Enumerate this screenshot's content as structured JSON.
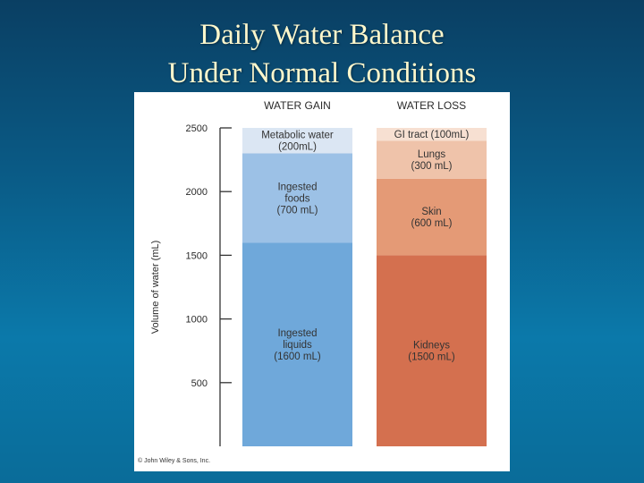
{
  "slide": {
    "title_line1": "Daily Water Balance",
    "title_line2": "Under Normal Conditions"
  },
  "credit": "© John Wiley & Sons, Inc.",
  "chart_data": {
    "type": "bar",
    "stacked": true,
    "ylabel": "Volume of water (mL)",
    "ylim": [
      0,
      2500
    ],
    "yticks": [
      500,
      1000,
      1500,
      2000,
      2500
    ],
    "grid": false,
    "columns": [
      {
        "header": "WATER GAIN",
        "segments": [
          {
            "lines": [
              "Ingested",
              "liquids",
              "(1600 mL)"
            ],
            "value": 1600,
            "color": "#6fa8da"
          },
          {
            "lines": [
              "Ingested",
              "foods",
              "(700 mL)"
            ],
            "value": 700,
            "color": "#9cc1e6"
          },
          {
            "lines": [
              "Metabolic water",
              "(200mL)"
            ],
            "value": 200,
            "color": "#dbe6f3"
          }
        ]
      },
      {
        "header": "WATER LOSS",
        "segments": [
          {
            "lines": [
              "Kidneys",
              "(1500 mL)"
            ],
            "value": 1500,
            "color": "#d4704f"
          },
          {
            "lines": [
              "Skin",
              "(600 mL)"
            ],
            "value": 600,
            "color": "#e49a76"
          },
          {
            "lines": [
              "Lungs",
              "(300 mL)"
            ],
            "value": 300,
            "color": "#efc3aa"
          },
          {
            "lines": [
              "GI tract (100mL)"
            ],
            "value": 100,
            "color": "#f7e0d2"
          }
        ]
      }
    ]
  }
}
